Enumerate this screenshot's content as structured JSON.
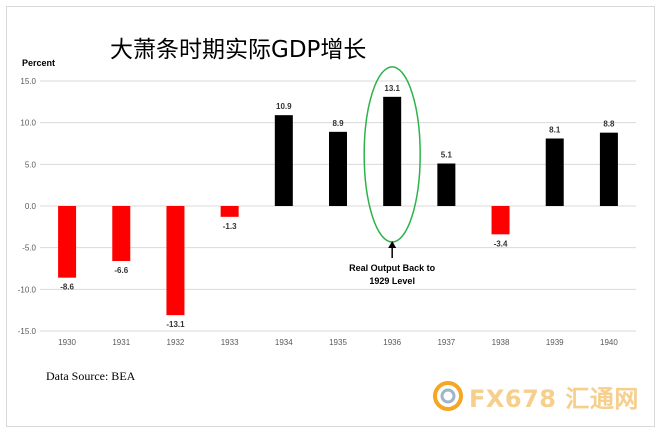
{
  "title": "大萧条时期实际GDP增长",
  "source": "Data Source: BEA",
  "watermark": "FX678 汇通网",
  "colors": {
    "negative": "#ff0000",
    "positive": "#000000",
    "annotation": "#2db34a",
    "grid": "#d9d9d9"
  },
  "chart_data": {
    "type": "bar",
    "ylabel": "Percent",
    "ylim": [
      -15,
      15
    ],
    "yticks": [
      15.0,
      10.0,
      5.0,
      0.0,
      -5.0,
      -10.0,
      -15.0
    ],
    "ytick_labels": [
      "15.0",
      "10.0",
      "5.0",
      "0.0",
      "-5.0",
      "-10.0",
      "-15.0"
    ],
    "grid": true,
    "categories": [
      "1930",
      "1931",
      "1932",
      "1933",
      "1934",
      "1935",
      "1936",
      "1937",
      "1938",
      "1939",
      "1940"
    ],
    "values": [
      -8.6,
      -6.6,
      -13.1,
      -1.3,
      10.9,
      8.9,
      13.1,
      5.1,
      -3.4,
      8.1,
      8.8
    ],
    "data_labels": [
      "-8.6",
      "-6.6",
      "-13.1",
      "-1.3",
      "10.9",
      "8.9",
      "13.1",
      "5.1",
      "-3.4",
      "8.1",
      "8.8"
    ],
    "annotation": {
      "category": "1936",
      "text_lines": [
        "Real Output Back to",
        "1929 Level"
      ]
    }
  }
}
